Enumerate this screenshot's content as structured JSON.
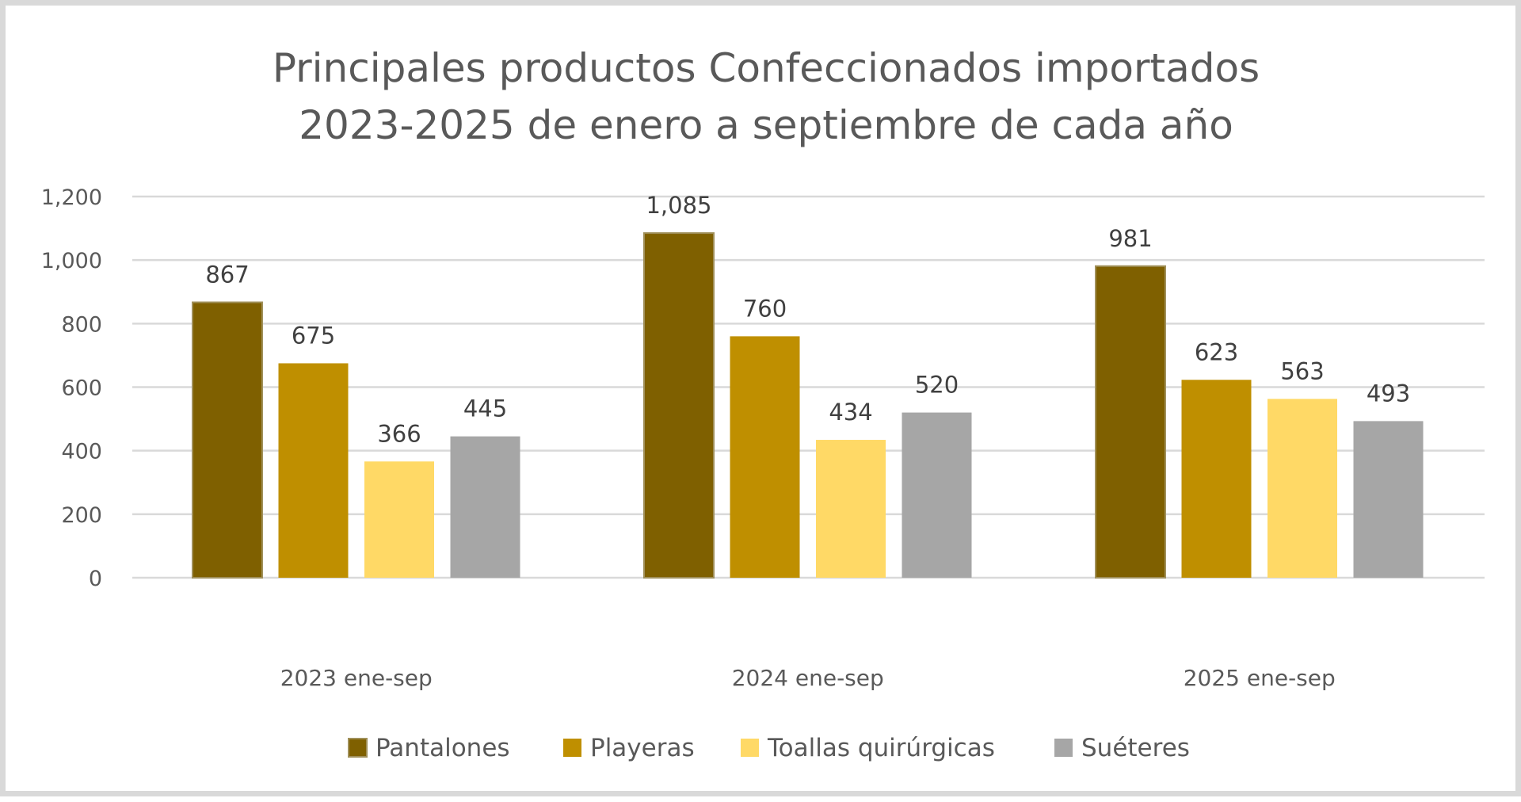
{
  "chart_data": {
    "type": "bar",
    "title": [
      "Principales productos Confeccionados importados",
      "2023-2025 de enero a septiembre de cada año"
    ],
    "xlabel": "",
    "ylabel": "",
    "categories": [
      "2023 ene-sep",
      "2024 ene-sep",
      "2025 ene-sep"
    ],
    "series": [
      {
        "name": "Pantalones",
        "color": "#7F6000",
        "values": [
          867,
          1085,
          981
        ],
        "labels": [
          "867",
          "1,085",
          "981"
        ]
      },
      {
        "name": "Playeras",
        "color": "#BF8F00",
        "values": [
          675,
          760,
          623
        ],
        "labels": [
          "675",
          "760",
          "623"
        ]
      },
      {
        "name": "Toallas quirúrgicas",
        "color": "#FFD966",
        "values": [
          366,
          434,
          563
        ],
        "labels": [
          "366",
          "434",
          "563"
        ]
      },
      {
        "name": "Suéteres",
        "color": "#A6A6A6",
        "values": [
          445,
          520,
          493
        ],
        "labels": [
          "445",
          "520",
          "493"
        ]
      }
    ],
    "ylim": [
      0,
      1200
    ],
    "yticks": [
      0,
      200,
      400,
      600,
      800,
      1000,
      1200
    ],
    "ytick_labels": [
      "0",
      "200",
      "400",
      "600",
      "800",
      "1,000",
      "1,200"
    ],
    "grid": true,
    "legend_position": "bottom"
  }
}
